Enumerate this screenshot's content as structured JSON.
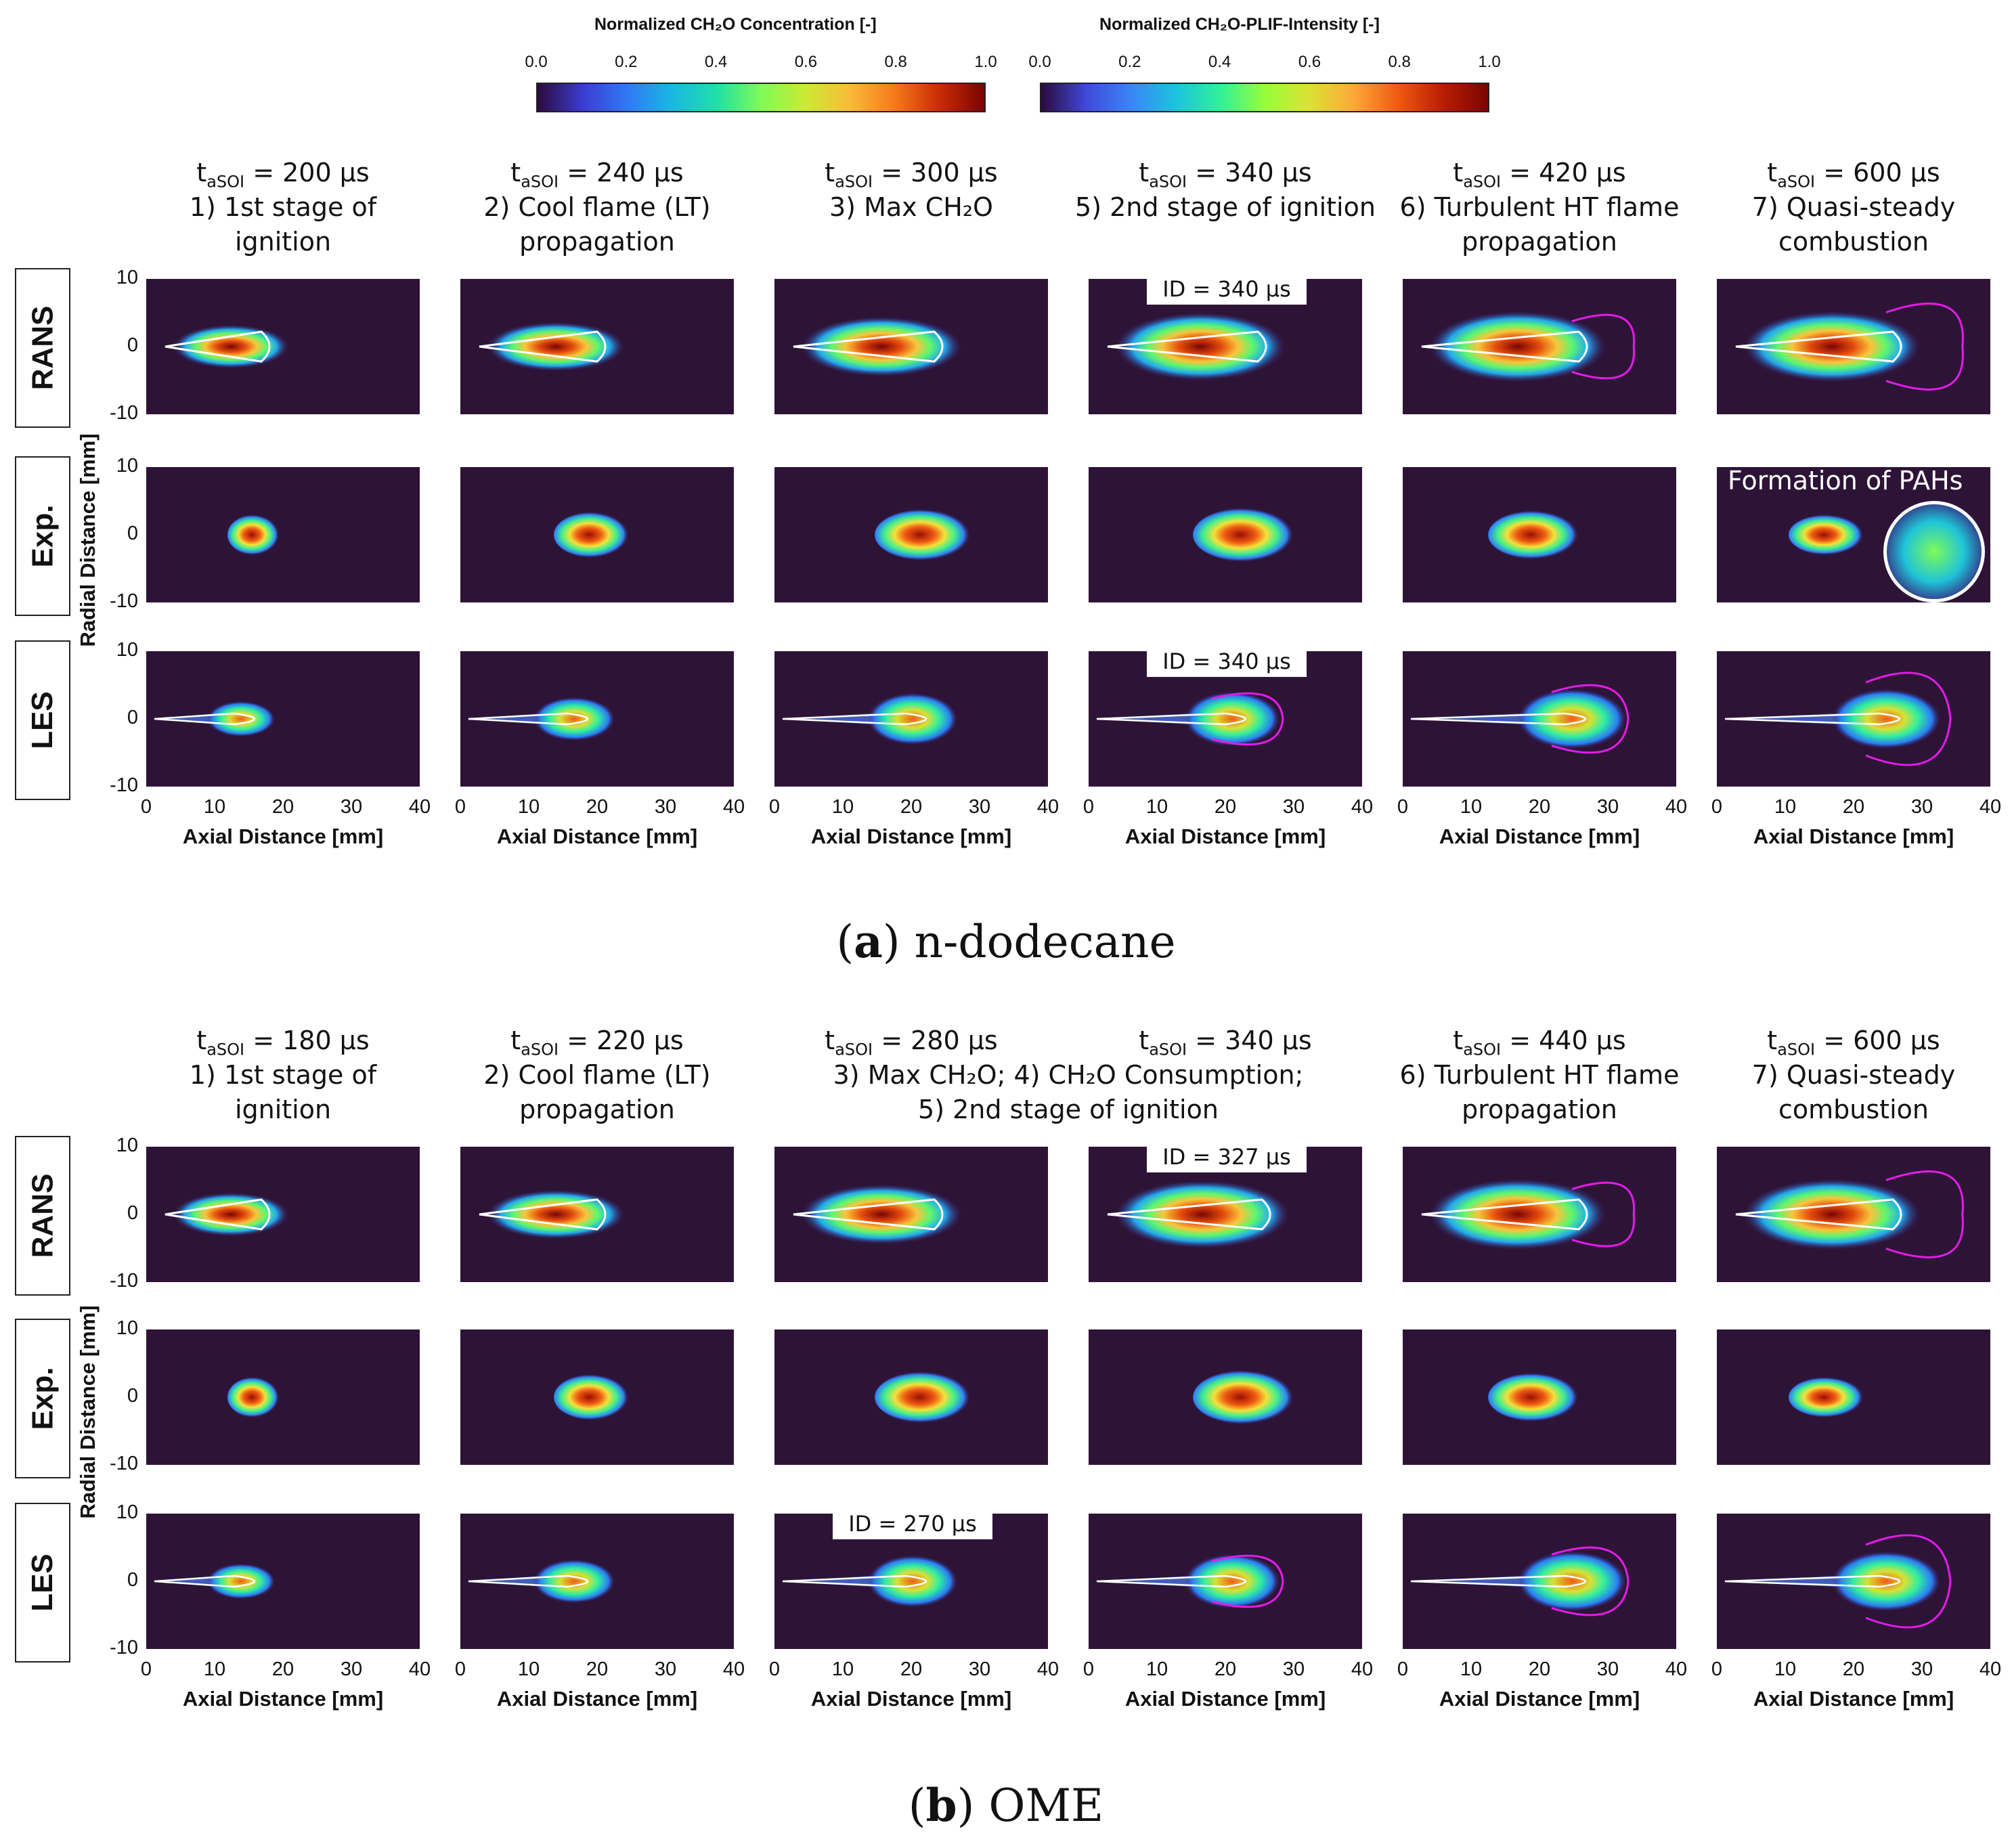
{
  "colorbars": {
    "left": {
      "title": "Normalized CH₂O Concentration [-]",
      "ticks": [
        "0.0",
        "0.2",
        "0.4",
        "0.6",
        "0.8",
        "1.0"
      ]
    },
    "right": {
      "title": "Normalized CH₂O-PLIF-Intensity [-]",
      "ticks": [
        "0.0",
        "0.2",
        "0.4",
        "0.6",
        "0.8",
        "1.0"
      ]
    }
  },
  "rows": {
    "rans": "RANS",
    "exp": "Exp.",
    "les": "LES"
  },
  "axes": {
    "ylabel": "Radial Distance [mm]",
    "xlabel": "Axial Distance [mm]",
    "yticks": [
      "10",
      "0",
      "-10"
    ],
    "xticks": [
      "0",
      "10",
      "20",
      "30",
      "40"
    ]
  },
  "section_a": {
    "caption_letter": "a",
    "caption_text": "n-dodecane",
    "columns": [
      {
        "t": "200 µs",
        "line1": "1) 1st stage of",
        "line2": "ignition"
      },
      {
        "t": "240 µs",
        "line1": "2) Cool flame (LT)",
        "line2": "propagation"
      },
      {
        "t": "300 µs",
        "line1": "3) Max CH₂O",
        "line2": ""
      },
      {
        "t": "340 µs",
        "line1": "5) 2nd stage of ignition",
        "line2": ""
      },
      {
        "t": "420 µs",
        "line1": "6) Turbulent HT flame",
        "line2": "propagation"
      },
      {
        "t": "600 µs",
        "line1": "7) Quasi-steady",
        "line2": "combustion"
      }
    ],
    "rans_id": "ID = 340 µs",
    "les_id": "ID = 340 µs",
    "pah_label": "Formation of PAHs"
  },
  "section_b": {
    "caption_letter": "b",
    "caption_text": "OME",
    "columns": [
      {
        "t": "180 µs",
        "line1": "1) 1st stage of",
        "line2": "ignition"
      },
      {
        "t": "220 µs",
        "line1": "2) Cool flame (LT)",
        "line2": "propagation"
      },
      {
        "t": "280 µs",
        "line1": "",
        "line2": ""
      },
      {
        "t": "340 µs",
        "line1": "",
        "line2": ""
      },
      {
        "t": "440 µs",
        "line1": "6) Turbulent HT flame",
        "line2": "propagation"
      },
      {
        "t": "600 µs",
        "line1": "7) Quasi-steady",
        "line2": "combustion"
      }
    ],
    "merged_line1": "3) Max CH₂O; 4) CH₂O Consumption;",
    "merged_line2": "5) 2nd stage of ignition",
    "rans_id": "ID = 327 µs",
    "les_id": "ID = 270 µs"
  },
  "t_prefix": "t",
  "t_sub": "aSOI",
  "t_eq": " = "
}
